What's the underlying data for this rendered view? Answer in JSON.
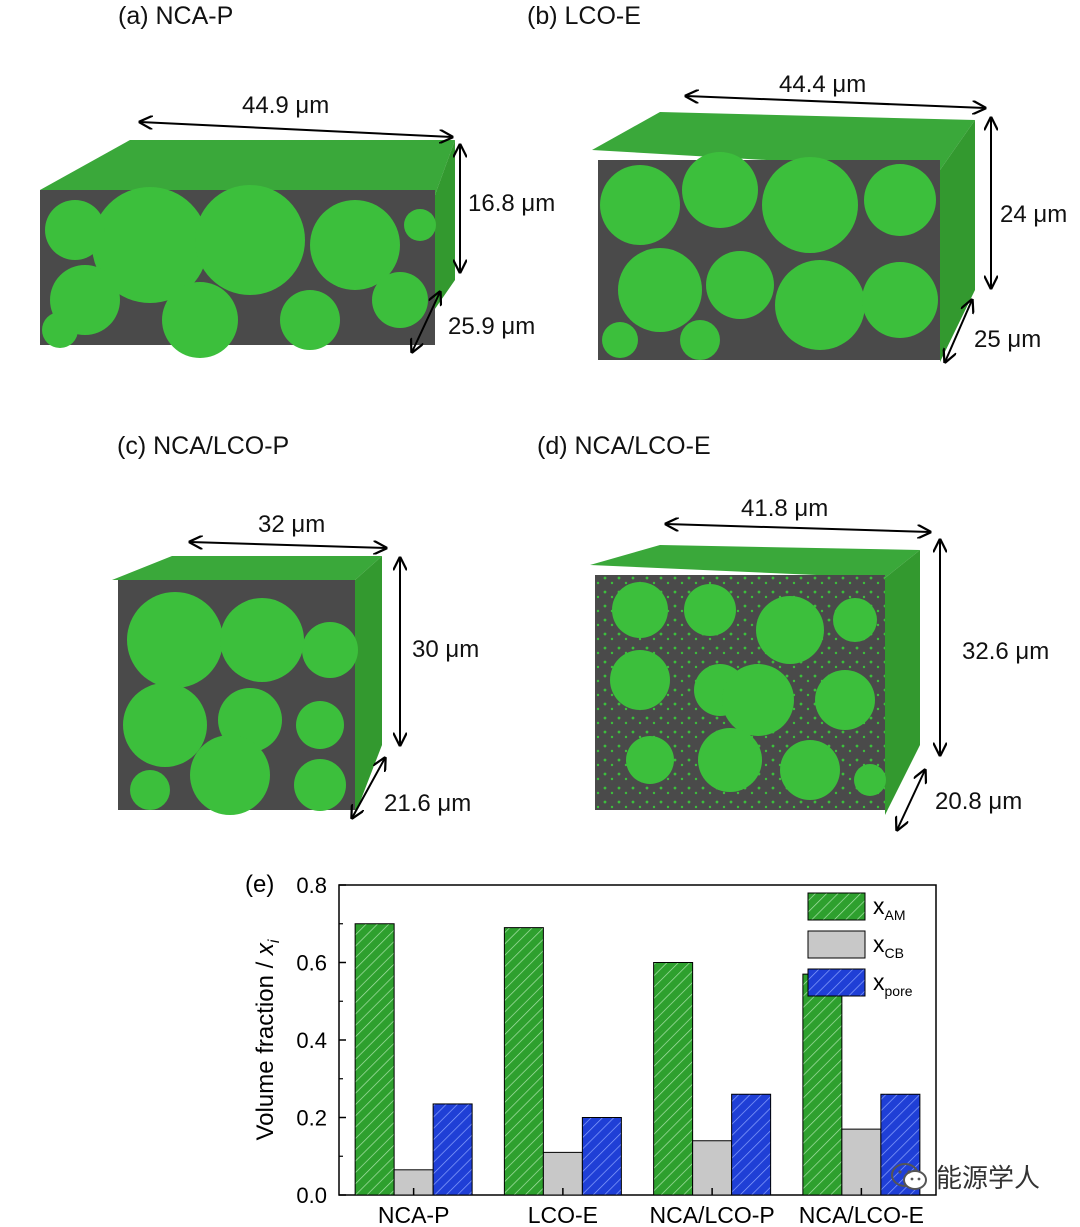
{
  "panels": {
    "a": {
      "label": "(a) NCA-P",
      "width": "44.9 μm",
      "height": "16.8 μm",
      "depth": "25.9 μm"
    },
    "b": {
      "label": "(b) LCO-E",
      "width": "44.4 μm",
      "height": "24 μm",
      "depth": "25 μm"
    },
    "c": {
      "label": "(c) NCA/LCO-P",
      "width": "32 μm",
      "height": "30 μm",
      "depth": "21.6 μm"
    },
    "d": {
      "label": "(d) NCA/LCO-E",
      "width": "41.8 μm",
      "height": "32.6 μm",
      "depth": "20.8 μm"
    },
    "e": {
      "label": "(e)"
    }
  },
  "colors": {
    "am": "#2ea02e",
    "cb": "#c8c8c8",
    "pore": "#1f3fd6",
    "solid_green": "#3cbf3c",
    "pore_gray": "#4a4a4a"
  },
  "watermark": {
    "text": "能源学人",
    "icon": "wechat-icon"
  },
  "chart_data": {
    "type": "bar",
    "ylabel": "Volume fraction / xi",
    "ylim": [
      0.0,
      0.8
    ],
    "yticks": [
      "0.0",
      "0.2",
      "0.4",
      "0.6",
      "0.8"
    ],
    "categories": [
      "NCA-P",
      "LCO-E",
      "NCA/LCO-P",
      "NCA/LCO-E"
    ],
    "series": [
      {
        "name": "xAM",
        "legend_main": "x",
        "legend_sub": "AM",
        "values": [
          0.7,
          0.69,
          0.6,
          0.57
        ]
      },
      {
        "name": "xCB",
        "legend_main": "x",
        "legend_sub": "CB",
        "values": [
          0.065,
          0.11,
          0.14,
          0.17
        ]
      },
      {
        "name": "xpore",
        "legend_main": "x",
        "legend_sub": "pore",
        "values": [
          0.235,
          0.2,
          0.26,
          0.26
        ]
      }
    ],
    "legend_position": "top-right"
  }
}
